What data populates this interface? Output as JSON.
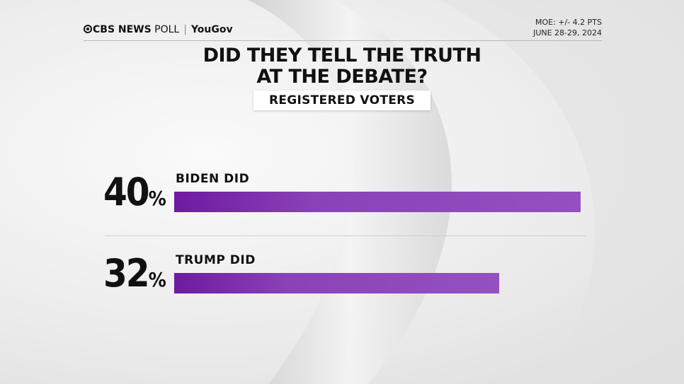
{
  "header": {
    "brand_cbs": "CBS NEWS",
    "brand_poll": "POLL",
    "brand_partner": "YouGov",
    "moe": "MOE: +/- 4.2 PTS",
    "dates": "JUNE 28-29, 2024"
  },
  "title_line1": "DID THEY TELL THE TRUTH",
  "title_line2": "AT THE DEBATE?",
  "subtitle": "REGISTERED VOTERS",
  "colors": {
    "bar_start": "#6e1aa0",
    "bar_end": "#9450c0",
    "text": "#111111"
  },
  "chart_data": {
    "type": "bar",
    "orientation": "horizontal",
    "title": "DID THEY TELL THE TRUTH AT THE DEBATE?",
    "subtitle": "REGISTERED VOTERS",
    "categories": [
      "BIDEN DID",
      "TRUMP DID"
    ],
    "values": [
      40,
      32
    ],
    "value_labels": [
      "40",
      "32"
    ],
    "unit": "%",
    "xlim": [
      0,
      40
    ],
    "grid": false,
    "legend": "none"
  }
}
